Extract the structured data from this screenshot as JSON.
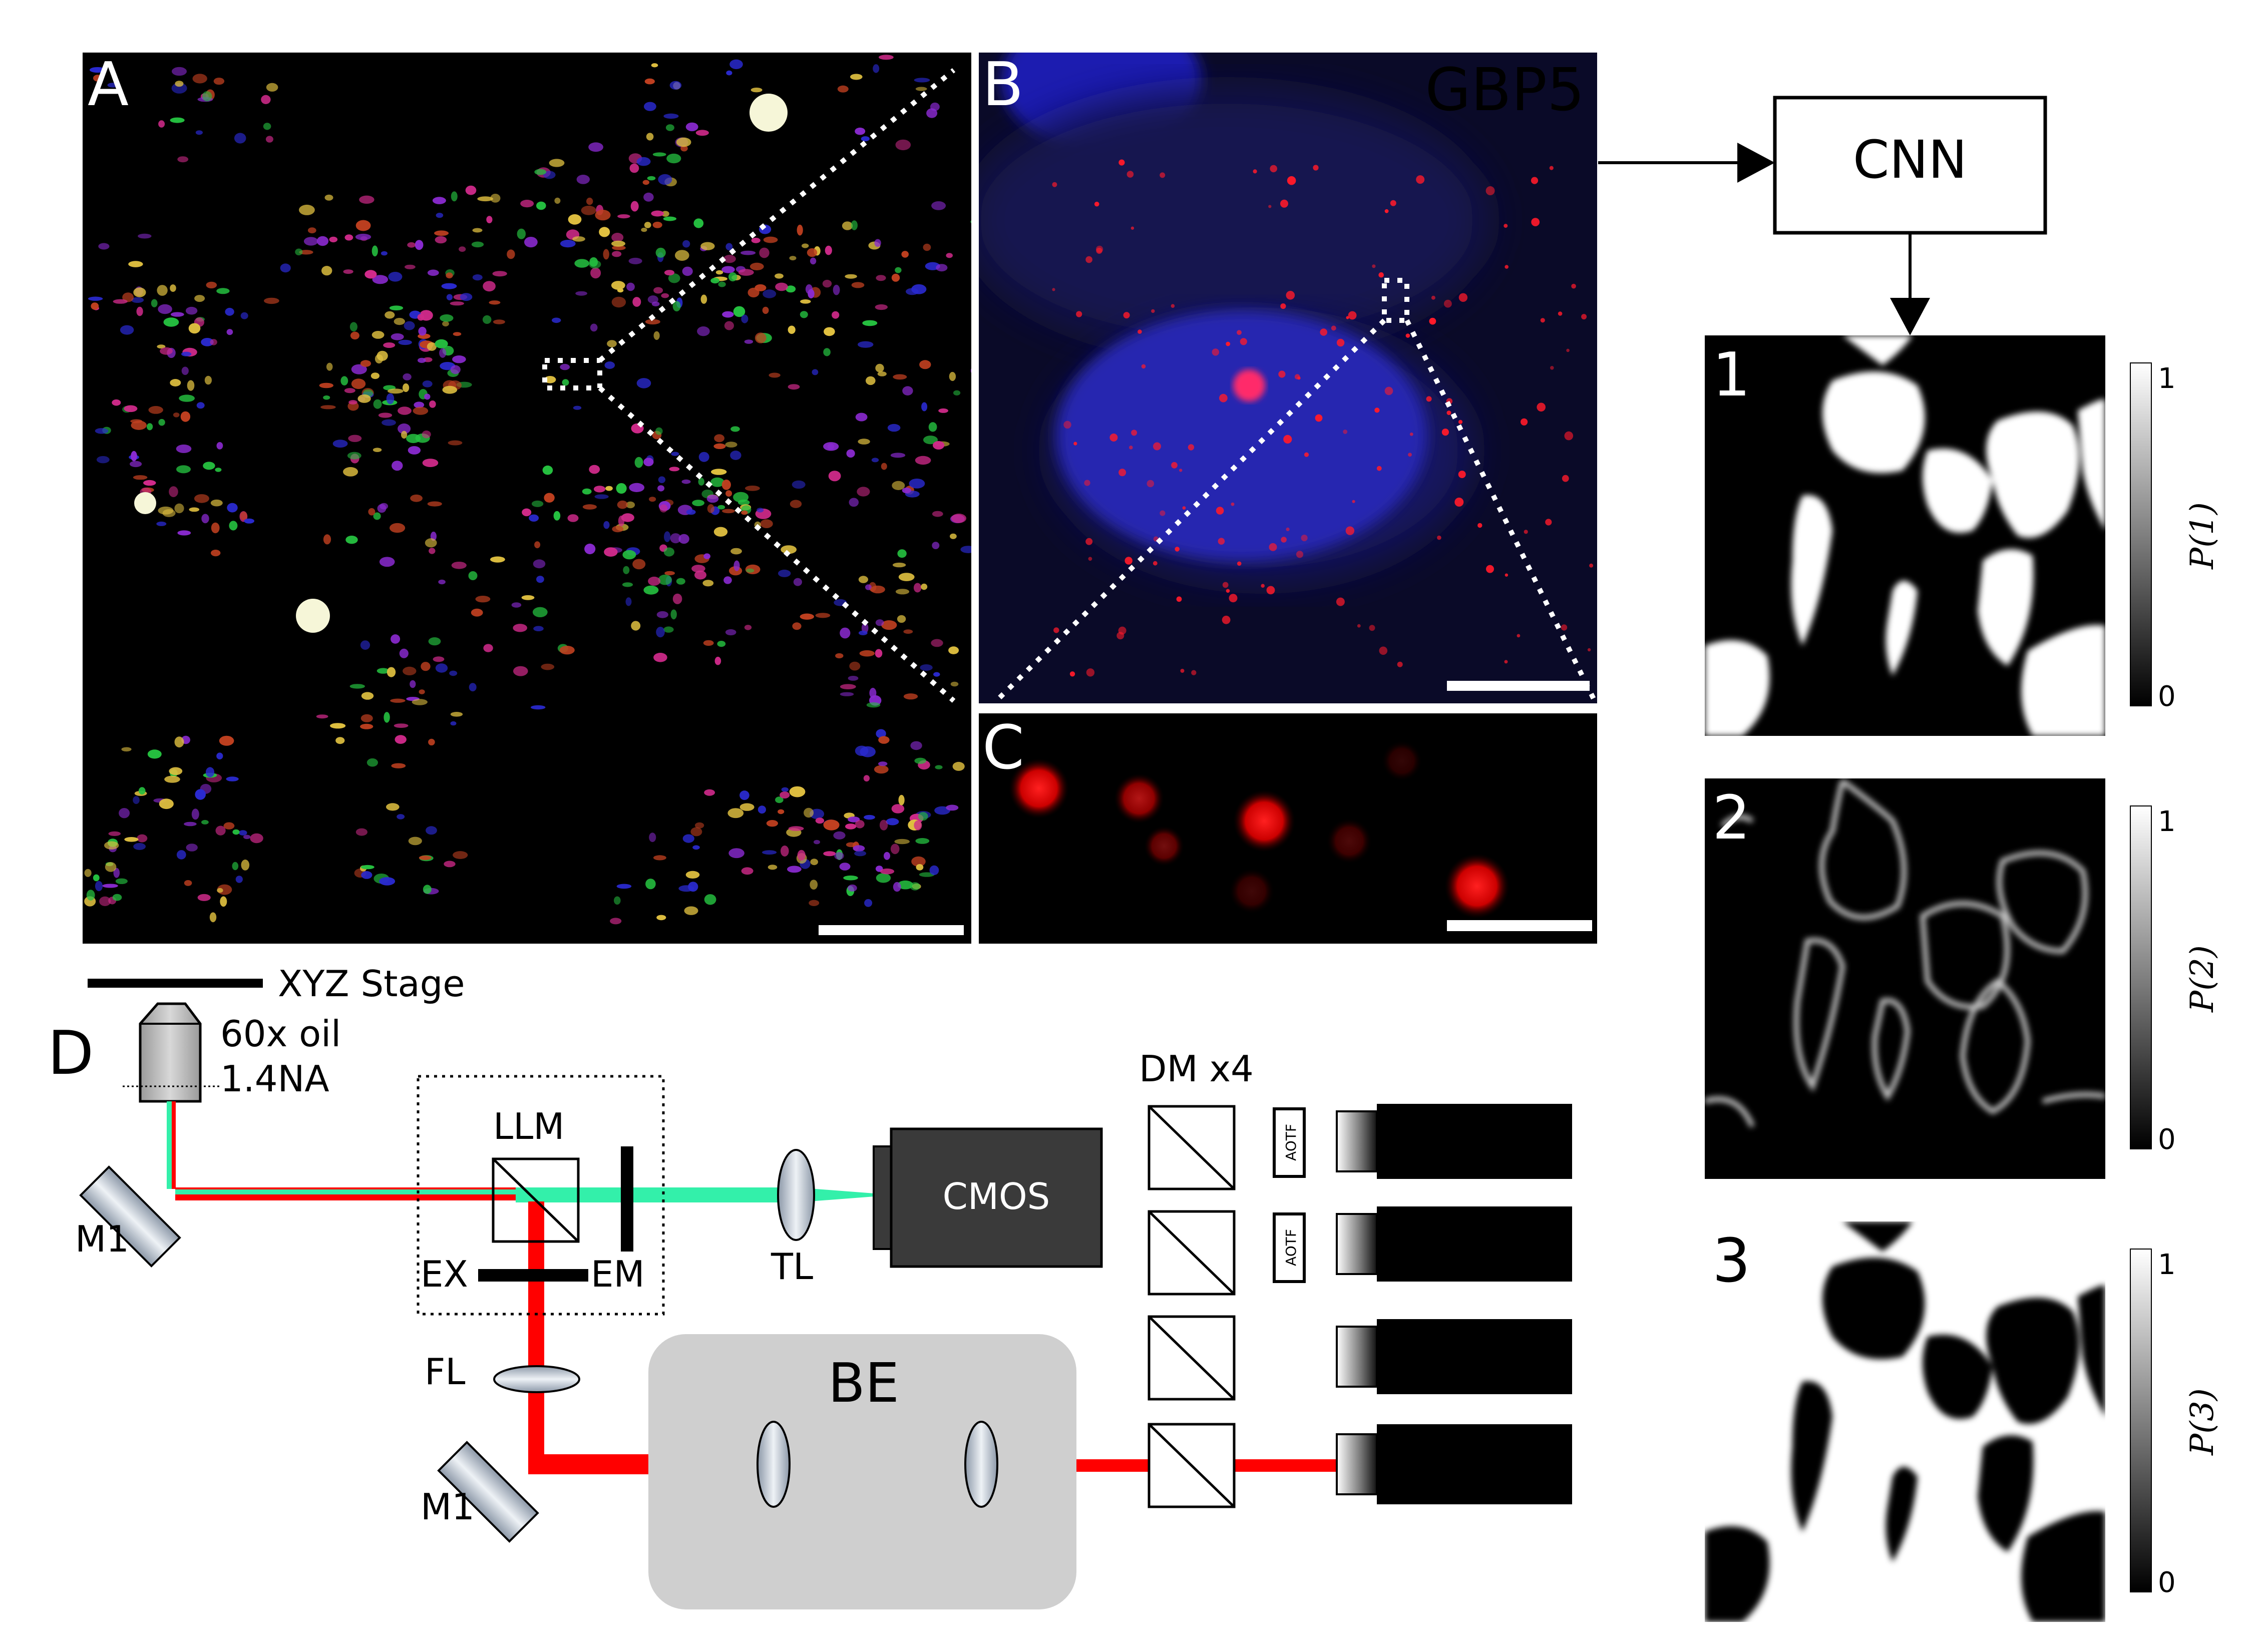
{
  "panels": {
    "a": {
      "letter": "A"
    },
    "b": {
      "letter": "B",
      "marker": "GBP5",
      "marker_color": "#ff0000"
    },
    "c": {
      "letter": "C"
    },
    "d": {
      "letter": "D"
    }
  },
  "network": {
    "label": "CNN"
  },
  "outputs": [
    {
      "number": "1",
      "axis_label": "P(1)",
      "tick_top": "1",
      "tick_bottom": "0"
    },
    {
      "number": "2",
      "axis_label": "P(2)",
      "tick_top": "1",
      "tick_bottom": "0"
    },
    {
      "number": "3",
      "axis_label": "P(3)",
      "tick_top": "1",
      "tick_bottom": "0"
    }
  ],
  "setup": {
    "stage": "XYZ Stage",
    "objective_line1": "60x oil",
    "objective_line2": "1.4NA",
    "mirror_top": "M1",
    "mirror_bottom": "M1",
    "llm": "LLM",
    "ex": "EX",
    "em": "EM",
    "fl": "FL",
    "tl": "TL",
    "camera": "CMOS",
    "be": "BE",
    "dm": "DM x4",
    "aotf": "AOTF"
  },
  "colors": {
    "laser": "#ff0000",
    "emission": "#33f0aa",
    "nucleus": "#1a1aa0",
    "camera": "#3a3a3a"
  }
}
